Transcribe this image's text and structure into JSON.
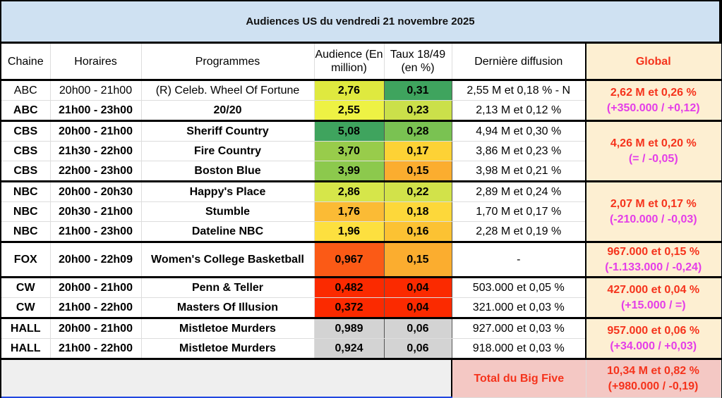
{
  "title": "Audiences US du vendredi 21 novembre 2025",
  "headers": {
    "chaine": "Chaine",
    "horaires": "Horaires",
    "programmes": "Programmes",
    "audience": "Audience (En million)",
    "taux": "Taux 18/49 (en %)",
    "derniere": "Dernière diffusion",
    "global": "Global"
  },
  "rows": [
    {
      "chaine": "ABC",
      "horaires": "20h00 - 21h00",
      "programme": "(R) Celeb. Wheel Of Fortune",
      "audience": "2,76",
      "taux": "0,31",
      "derniere": "2,55 M et 0,18 % - N",
      "aud_color": "#dfe93f",
      "taux_color": "#3fa45e"
    },
    {
      "chaine": "ABC",
      "horaires": "21h00 - 23h00",
      "programme": "20/20",
      "audience": "2,55",
      "taux": "0,23",
      "derniere": "2,13 M et 0,12 %",
      "aud_color": "#eef244",
      "taux_color": "#cbe04a"
    },
    {
      "chaine": "CBS",
      "horaires": "20h00 - 21h00",
      "programme": "Sheriff Country",
      "audience": "5,08",
      "taux": "0,28",
      "derniere": "4,94 M et 0,30 %",
      "aud_color": "#3fa45e",
      "taux_color": "#7ac252"
    },
    {
      "chaine": "CBS",
      "horaires": "21h30 - 22h00",
      "programme": "Fire Country",
      "audience": "3,70",
      "taux": "0,17",
      "derniere": "3,86 M et 0,23 %",
      "aud_color": "#98cc4b",
      "taux_color": "#fdd235"
    },
    {
      "chaine": "CBS",
      "horaires": "22h00 - 23h00",
      "programme": "Boston Blue",
      "audience": "3,99",
      "taux": "0,15",
      "derniere": "3,98 M et 0,21 %",
      "aud_color": "#8cc94d",
      "taux_color": "#fbad2f"
    },
    {
      "chaine": "NBC",
      "horaires": "20h00 - 20h30",
      "programme": "Happy's Place",
      "audience": "2,86",
      "taux": "0,22",
      "derniere": "2,89 M et 0,24 %",
      "aud_color": "#d6e64a",
      "taux_color": "#d2e24a"
    },
    {
      "chaine": "NBC",
      "horaires": "20h30 - 21h00",
      "programme": "Stumble",
      "audience": "1,76",
      "taux": "0,18",
      "derniere": "1,70 M et 0,17 %",
      "aud_color": "#fbbb35",
      "taux_color": "#fdd83a"
    },
    {
      "chaine": "NBC",
      "horaires": "21h00 - 23h00",
      "programme": "Dateline NBC",
      "audience": "1,96",
      "taux": "0,16",
      "derniere": "2,28 M et 0,19 %",
      "aud_color": "#fde03f",
      "taux_color": "#fcc233"
    },
    {
      "chaine": "FOX",
      "horaires": "20h00 - 22h09",
      "programme": "Women's College Basketball",
      "audience": "0,967",
      "taux": "0,15",
      "derniere": "-",
      "aud_color": "#fb5a16",
      "taux_color": "#fbad2f"
    },
    {
      "chaine": "CW",
      "horaires": "20h00 - 21h00",
      "programme": "Penn & Teller",
      "audience": "0,482",
      "taux": "0,04",
      "derniere": "503.000 et 0,05 %",
      "aud_color": "#fb2a00",
      "taux_color": "#fb2a00"
    },
    {
      "chaine": "CW",
      "horaires": "21h00 - 22h00",
      "programme": "Masters Of Illusion",
      "audience": "0,372",
      "taux": "0,04",
      "derniere": "321.000 et 0,03 %",
      "aud_color": "#fb2a00",
      "taux_color": "#fb2a00"
    },
    {
      "chaine": "HALL",
      "horaires": "20h00 - 21h00",
      "programme": "Mistletoe Murders",
      "audience": "0,989",
      "taux": "0,06",
      "derniere": "927.000 et 0,03 %",
      "aud_color": "#d3d3d3",
      "taux_color": "#d3d3d3"
    },
    {
      "chaine": "HALL",
      "horaires": "21h00 - 22h00",
      "programme": "Mistletoe Murders",
      "audience": "0,924",
      "taux": "0,06",
      "derniere": "918.000 et 0,03 %",
      "aud_color": "#d3d3d3",
      "taux_color": "#d3d3d3"
    }
  ],
  "globals": [
    {
      "main": "2,62 M et 0,26 %",
      "diff": "(+350.000 / +0,12)"
    },
    {
      "main": "4,26 M et 0,20 %",
      "diff": "(= / -0,05)"
    },
    {
      "main": "2,07 M et 0,17 %",
      "diff": "(-210.000 / -0,03)"
    },
    {
      "main": "967.000 et 0,15 %",
      "diff": "(-1.133.000 / -0,24)"
    },
    {
      "main": "427.000 et 0,04 %",
      "diff": "(+15.000 / =)"
    },
    {
      "main": "957.000 et 0,06 %",
      "diff": "(+34.000 / +0,03)"
    }
  ],
  "total": {
    "label": "Total du Big Five",
    "main": "10,34 M et 0,82 %",
    "diff": "(+980.000 / -0,19)"
  }
}
